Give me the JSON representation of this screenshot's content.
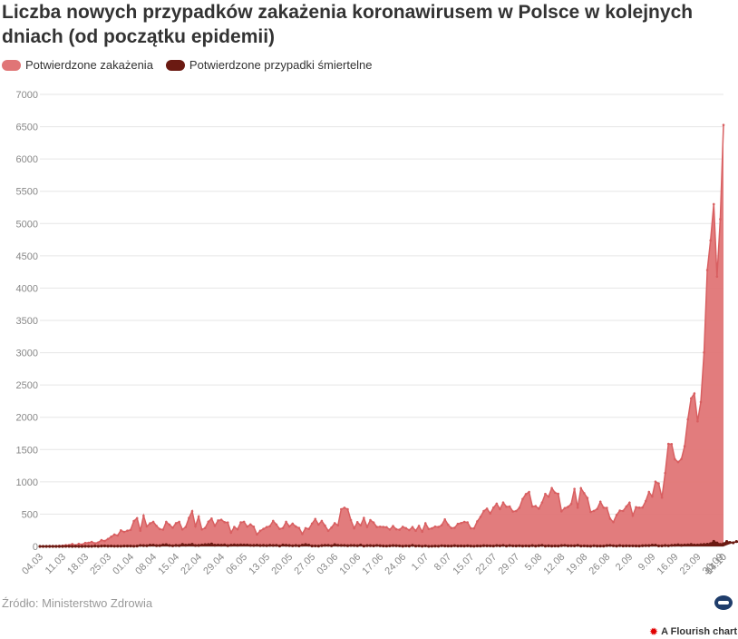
{
  "title": "Liczba nowych przypadków zakażenia koronawirusem w Polsce w kolejnych dniach (od początku epidemii)",
  "source": "Źródło: Ministerstwo Zdrowia",
  "flourish": "A Flourish chart",
  "colors": {
    "cases": "#e07576",
    "deaths": "#6b1a12",
    "grid": "#e6e6e6"
  },
  "chart_data": {
    "type": "area",
    "legend_position": "top-left",
    "grid": true,
    "ylim": [
      0,
      7000
    ],
    "yticks": [
      0,
      500,
      1000,
      1500,
      2000,
      2500,
      3000,
      3500,
      4000,
      4500,
      5000,
      5500,
      6000,
      6500,
      7000
    ],
    "start_date": "2020-03-04",
    "end_date": "2020-10-14",
    "xtick_labels": [
      "04.03",
      "11.03",
      "18.03",
      "25.03",
      "01.04",
      "08.04",
      "15.04",
      "22.04",
      "29.04",
      "06.05",
      "13.05",
      "20.05",
      "27.05",
      "03.06",
      "10.06",
      "17.06",
      "24.06",
      "1.07",
      "8.07",
      "15.07",
      "22.07",
      "29.07",
      "5.08",
      "12.08",
      "19.08",
      "26.08",
      "2.09",
      "9.09",
      "16.09",
      "23.09",
      "30.09",
      "07.10",
      "14.10"
    ],
    "series": [
      {
        "name": "Potwierdzone zakażenia",
        "color": "#e07576",
        "values": [
          1,
          0,
          4,
          6,
          6,
          6,
          9,
          11,
          19,
          20,
          36,
          17,
          40,
          29,
          54,
          56,
          70,
          48,
          61,
          97,
          84,
          115,
          150,
          183,
          170,
          249,
          224,
          243,
          256,
          392,
          437,
          244,
          475,
          311,
          357,
          380,
          318,
          268,
          260,
          380,
          336,
          290,
          360,
          380,
          263,
          301,
          440,
          545,
          313,
          461,
          263,
          285,
          382,
          431,
          319,
          401,
          413,
          375,
          370,
          214,
          301,
          265,
          371,
          381,
          307,
          341,
          305,
          186,
          241,
          271,
          300,
          314,
          395,
          339,
          272,
          284,
          380,
          310,
          353,
          308,
          285,
          193,
          283,
          271,
          353,
          424,
          339,
          395,
          322,
          242,
          292,
          360,
          327,
          576,
          599,
          575,
          407,
          282,
          375,
          326,
          440,
          302,
          407,
          370,
          301,
          305,
          302,
          298,
          261,
          315,
          266,
          259,
          304,
          282,
          253,
          299,
          243,
          318,
          229,
          358,
          270,
          280,
          307,
          301,
          328,
          418,
          337,
          285,
          289,
          349,
          362,
          379,
          372,
          281,
          280,
          388,
          458,
          548,
          584,
          512,
          601,
          662,
          579,
          680,
          615,
          618,
          541,
          548,
          599,
          734,
          809,
          843,
          619,
          624,
          585,
          680,
          812,
          771,
          903,
          832,
          815,
          544,
          594,
          612,
          658,
          890,
          600,
          900,
          823,
          750,
          534,
          550,
          580,
          692,
          601,
          597,
          430,
          376,
          486,
          555,
          550,
          617,
          678,
          478,
          608,
          600,
          603,
          702,
          843,
          774,
          1002,
          974,
          756,
          1136,
          1587,
          1584,
          1350,
          1306,
          1352,
          1552,
          1967,
          2292,
          2367,
          1937,
          2236,
          3003,
          4280,
          4739,
          5300,
          4178,
          5068,
          6526
        ]
      },
      {
        "name": "Potwierdzone przypadki śmiertelne",
        "color": "#6b1a12",
        "values": [
          0,
          0,
          0,
          0,
          0,
          0,
          0,
          0,
          1,
          2,
          0,
          2,
          0,
          0,
          2,
          1,
          1,
          5,
          2,
          5,
          7,
          4,
          6,
          3,
          4,
          3,
          6,
          5,
          6,
          3,
          6,
          15,
          12,
          11,
          19,
          20,
          12,
          13,
          23,
          26,
          15,
          10,
          16,
          13,
          31,
          19,
          24,
          32,
          15,
          16,
          22,
          26,
          29,
          37,
          19,
          22,
          20,
          24,
          13,
          20,
          23,
          19,
          23,
          22,
          22,
          17,
          16,
          19,
          14,
          16,
          13,
          18,
          15,
          17,
          7,
          21,
          18,
          14,
          10,
          14,
          9,
          20,
          28,
          19,
          7,
          8,
          5,
          12,
          17,
          17,
          10,
          27,
          17,
          15,
          15,
          11,
          15,
          14,
          11,
          21,
          6,
          12,
          12,
          9,
          15,
          11,
          7,
          6,
          9,
          12,
          11,
          8,
          4,
          8,
          5,
          16,
          6,
          8,
          3,
          8,
          1,
          3,
          5,
          3,
          10,
          7,
          6,
          6,
          11,
          6,
          7,
          5,
          9,
          5,
          3,
          7,
          6,
          11,
          9,
          8,
          6,
          12,
          9,
          15,
          6,
          13,
          8,
          7,
          10,
          5,
          8,
          6,
          12,
          5,
          11,
          16,
          5,
          9,
          5,
          7,
          5,
          12,
          15,
          9,
          10,
          9,
          16,
          6,
          8,
          6,
          4,
          10,
          5,
          6,
          5,
          12,
          15,
          10,
          5,
          12,
          7,
          9,
          8,
          8,
          7,
          6,
          11,
          13,
          12,
          20,
          20,
          8,
          9,
          14,
          10,
          17,
          19,
          25,
          18,
          22,
          23,
          30,
          22,
          22,
          27,
          31,
          34,
          42,
          77,
          53,
          32,
          42,
          76,
          62,
          57,
          75,
          59,
          116
        ]
      }
    ]
  }
}
